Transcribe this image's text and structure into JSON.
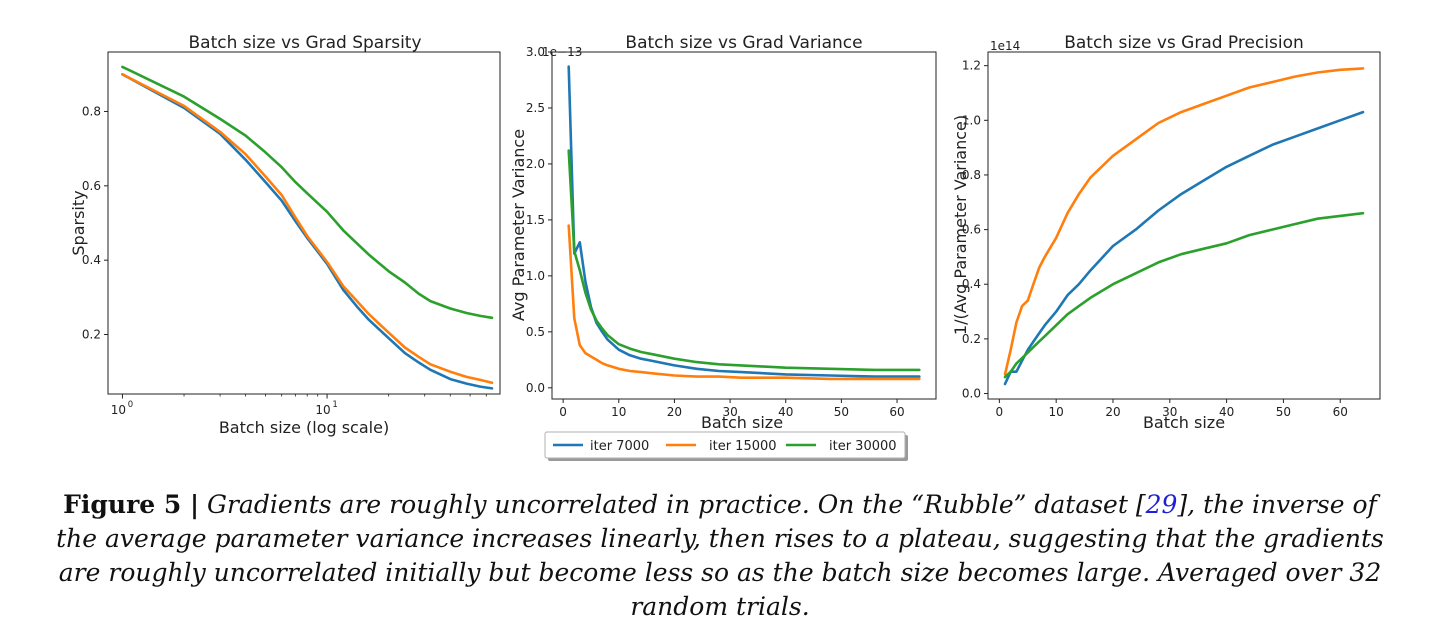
{
  "chart_data": [
    {
      "type": "line",
      "title": "Batch size vs Grad Sparsity",
      "xlabel": "Batch size (log scale)",
      "ylabel": "Sparsity",
      "xscale": "log",
      "xlim": [
        0.85,
        70
      ],
      "ylim": [
        0.04,
        0.96
      ],
      "xtick_labels": [
        {
          "value": 1,
          "base": "10",
          "exp": "0"
        },
        {
          "value": 10,
          "base": "10",
          "exp": "1"
        }
      ],
      "yticks": [
        0.2,
        0.4,
        0.6,
        0.8
      ],
      "ytick_labels": [
        "0.2",
        "0.4",
        "0.6",
        "0.8"
      ],
      "x": [
        1,
        2,
        3,
        4,
        5,
        6,
        7,
        8,
        10,
        12,
        14,
        16,
        20,
        24,
        28,
        32,
        40,
        48,
        56,
        64
      ],
      "series": [
        {
          "name": "iter 7000",
          "color": "#1f77b4",
          "values": [
            0.9,
            0.81,
            0.74,
            0.67,
            0.61,
            0.56,
            0.505,
            0.46,
            0.39,
            0.32,
            0.275,
            0.24,
            0.19,
            0.15,
            0.125,
            0.105,
            0.08,
            0.068,
            0.06,
            0.055
          ]
        },
        {
          "name": "iter 15000",
          "color": "#ff7f0e",
          "values": [
            0.9,
            0.815,
            0.745,
            0.685,
            0.625,
            0.575,
            0.515,
            0.465,
            0.395,
            0.33,
            0.29,
            0.255,
            0.205,
            0.165,
            0.14,
            0.12,
            0.1,
            0.086,
            0.078,
            0.07
          ]
        },
        {
          "name": "iter 30000",
          "color": "#2ca02c",
          "values": [
            0.92,
            0.84,
            0.78,
            0.735,
            0.69,
            0.65,
            0.61,
            0.58,
            0.53,
            0.48,
            0.445,
            0.415,
            0.37,
            0.34,
            0.31,
            0.29,
            0.27,
            0.258,
            0.25,
            0.245
          ]
        }
      ]
    },
    {
      "type": "line",
      "title": "Batch size vs Grad Variance",
      "xlabel": "Batch size",
      "ylabel": "Avg Parameter Variance",
      "offset_label": "1e−13",
      "xlim": [
        -2,
        67
      ],
      "ylim": [
        -0.1,
        3.0
      ],
      "xticks": [
        0,
        10,
        20,
        30,
        40,
        50,
        60
      ],
      "xtick_labels": [
        "0",
        "10",
        "20",
        "30",
        "40",
        "50",
        "60"
      ],
      "yticks": [
        0.0,
        0.5,
        1.0,
        1.5,
        2.0,
        2.5,
        3.0
      ],
      "ytick_labels": [
        "0.0",
        "0.5",
        "1.0",
        "1.5",
        "2.0",
        "2.5",
        "3.0"
      ],
      "x": [
        1,
        2,
        3,
        4,
        5,
        6,
        7,
        8,
        10,
        12,
        14,
        16,
        20,
        24,
        28,
        32,
        40,
        48,
        56,
        64
      ],
      "series": [
        {
          "name": "iter 7000",
          "color": "#1f77b4",
          "values": [
            2.87,
            1.2,
            1.3,
            0.95,
            0.72,
            0.58,
            0.5,
            0.43,
            0.34,
            0.29,
            0.26,
            0.24,
            0.2,
            0.17,
            0.15,
            0.14,
            0.12,
            0.11,
            0.1,
            0.1
          ]
        },
        {
          "name": "iter 15000",
          "color": "#ff7f0e",
          "values": [
            1.45,
            0.62,
            0.38,
            0.31,
            0.28,
            0.25,
            0.22,
            0.2,
            0.17,
            0.15,
            0.14,
            0.13,
            0.11,
            0.1,
            0.1,
            0.09,
            0.09,
            0.08,
            0.08,
            0.08
          ]
        },
        {
          "name": "iter 30000",
          "color": "#2ca02c",
          "values": [
            2.12,
            1.22,
            1.05,
            0.85,
            0.7,
            0.6,
            0.53,
            0.47,
            0.39,
            0.35,
            0.32,
            0.3,
            0.26,
            0.23,
            0.21,
            0.2,
            0.18,
            0.17,
            0.16,
            0.16
          ]
        }
      ]
    },
    {
      "type": "line",
      "title": "Batch size vs Grad Precision",
      "xlabel": "Batch size",
      "ylabel": "1/(Avg Parameter Variance)",
      "offset_label": "1e14",
      "xlim": [
        -2,
        67
      ],
      "ylim": [
        -0.02,
        1.25
      ],
      "xticks": [
        0,
        10,
        20,
        30,
        40,
        50,
        60
      ],
      "xtick_labels": [
        "0",
        "10",
        "20",
        "30",
        "40",
        "50",
        "60"
      ],
      "yticks": [
        0.0,
        0.2,
        0.4,
        0.6,
        0.8,
        1.0,
        1.2
      ],
      "ytick_labels": [
        "0.0",
        "0.2",
        "0.4",
        "0.6",
        "0.8",
        "1.0",
        "1.2"
      ],
      "x": [
        1,
        2,
        3,
        4,
        5,
        6,
        7,
        8,
        10,
        12,
        14,
        16,
        20,
        24,
        28,
        32,
        36,
        40,
        44,
        48,
        52,
        56,
        60,
        64
      ],
      "series": [
        {
          "name": "iter 7000",
          "color": "#1f77b4",
          "values": [
            0.035,
            0.08,
            0.08,
            0.12,
            0.16,
            0.19,
            0.22,
            0.25,
            0.3,
            0.36,
            0.4,
            0.45,
            0.54,
            0.6,
            0.67,
            0.73,
            0.78,
            0.83,
            0.87,
            0.91,
            0.94,
            0.97,
            1.0,
            1.03
          ]
        },
        {
          "name": "iter 15000",
          "color": "#ff7f0e",
          "values": [
            0.07,
            0.16,
            0.26,
            0.32,
            0.34,
            0.4,
            0.46,
            0.5,
            0.57,
            0.66,
            0.73,
            0.79,
            0.87,
            0.93,
            0.99,
            1.03,
            1.06,
            1.09,
            1.12,
            1.14,
            1.16,
            1.175,
            1.185,
            1.19
          ]
        },
        {
          "name": "iter 30000",
          "color": "#2ca02c",
          "values": [
            0.06,
            0.08,
            0.11,
            0.13,
            0.15,
            0.17,
            0.19,
            0.21,
            0.25,
            0.29,
            0.32,
            0.35,
            0.4,
            0.44,
            0.48,
            0.51,
            0.53,
            0.55,
            0.58,
            0.6,
            0.62,
            0.64,
            0.65,
            0.66
          ]
        }
      ]
    }
  ],
  "legend": {
    "items": [
      {
        "label": "iter 7000",
        "color": "#1f77b4"
      },
      {
        "label": "iter 15000",
        "color": "#ff7f0e"
      },
      {
        "label": "iter 30000",
        "color": "#2ca02c"
      }
    ]
  },
  "caption": {
    "label": "Figure 5 |",
    "text_part1": "Gradients are roughly uncorrelated in practice. On the “Rubble” dataset [",
    "ref": "29",
    "text_part2": "], the inverse of the average parameter variance increases linearly, then rises to a plateau, suggesting that the gradients are roughly uncorrelated initially but become less so as the batch size becomes large. Averaged over 32 random trials."
  }
}
